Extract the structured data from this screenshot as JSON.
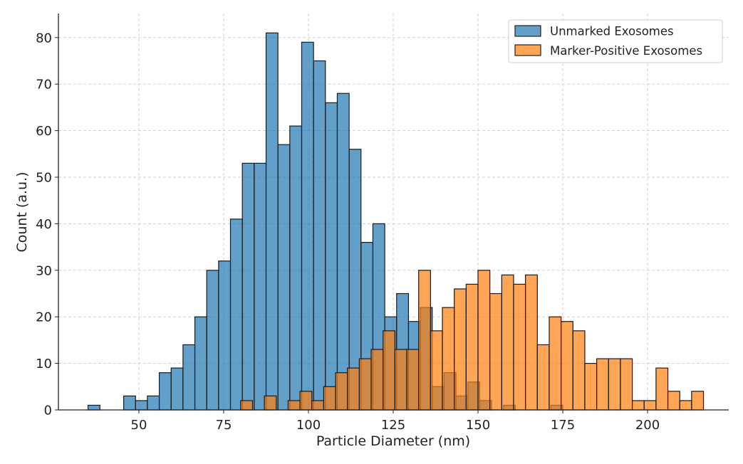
{
  "chart_data": {
    "type": "bar",
    "subtype": "histogram",
    "title": "",
    "xlabel": "Particle Diameter (nm)",
    "ylabel": "Count (a.u.)",
    "xlim": [
      30,
      222
    ],
    "ylim": [
      0,
      85
    ],
    "xticks": [
      50,
      75,
      100,
      125,
      150,
      175,
      200
    ],
    "yticks": [
      0,
      10,
      20,
      30,
      40,
      50,
      60,
      70,
      80
    ],
    "grid": true,
    "legend_position": "top-right",
    "bin_width": 3.5,
    "series": [
      {
        "name": "Unmarked Exosomes",
        "color": "#1f77b4",
        "bins": [
          {
            "x0": 35.0,
            "value": 1
          },
          {
            "x0": 45.5,
            "value": 3
          },
          {
            "x0": 49.0,
            "value": 2
          },
          {
            "x0": 52.5,
            "value": 3
          },
          {
            "x0": 56.0,
            "value": 8
          },
          {
            "x0": 59.5,
            "value": 9
          },
          {
            "x0": 63.0,
            "value": 14
          },
          {
            "x0": 66.5,
            "value": 20
          },
          {
            "x0": 70.0,
            "value": 30
          },
          {
            "x0": 73.5,
            "value": 32
          },
          {
            "x0": 77.0,
            "value": 41
          },
          {
            "x0": 80.5,
            "value": 53
          },
          {
            "x0": 84.0,
            "value": 53
          },
          {
            "x0": 87.5,
            "value": 81
          },
          {
            "x0": 91.0,
            "value": 57
          },
          {
            "x0": 94.5,
            "value": 61
          },
          {
            "x0": 98.0,
            "value": 79
          },
          {
            "x0": 101.5,
            "value": 75
          },
          {
            "x0": 105.0,
            "value": 66
          },
          {
            "x0": 108.5,
            "value": 68
          },
          {
            "x0": 112.0,
            "value": 56
          },
          {
            "x0": 115.5,
            "value": 36
          },
          {
            "x0": 119.0,
            "value": 40
          },
          {
            "x0": 122.5,
            "value": 20
          },
          {
            "x0": 126.0,
            "value": 25
          },
          {
            "x0": 129.5,
            "value": 19
          },
          {
            "x0": 133.0,
            "value": 22
          },
          {
            "x0": 136.5,
            "value": 5
          },
          {
            "x0": 140.0,
            "value": 8
          },
          {
            "x0": 143.5,
            "value": 3
          },
          {
            "x0": 147.0,
            "value": 6
          },
          {
            "x0": 150.5,
            "value": 2
          },
          {
            "x0": 157.5,
            "value": 1
          },
          {
            "x0": 171.5,
            "value": 1
          }
        ]
      },
      {
        "name": "Marker-Positive Exosomes",
        "color": "#ff7f0e",
        "bins": [
          {
            "x0": 80.0,
            "value": 2
          },
          {
            "x0": 87.0,
            "value": 3
          },
          {
            "x0": 94.0,
            "value": 2
          },
          {
            "x0": 97.5,
            "value": 4
          },
          {
            "x0": 101.0,
            "value": 2
          },
          {
            "x0": 104.5,
            "value": 5
          },
          {
            "x0": 108.0,
            "value": 8
          },
          {
            "x0": 111.5,
            "value": 9
          },
          {
            "x0": 115.0,
            "value": 11
          },
          {
            "x0": 118.5,
            "value": 13
          },
          {
            "x0": 122.0,
            "value": 17
          },
          {
            "x0": 125.5,
            "value": 13
          },
          {
            "x0": 129.0,
            "value": 13
          },
          {
            "x0": 132.5,
            "value": 30
          },
          {
            "x0": 136.0,
            "value": 17
          },
          {
            "x0": 139.5,
            "value": 22
          },
          {
            "x0": 143.0,
            "value": 26
          },
          {
            "x0": 146.5,
            "value": 27
          },
          {
            "x0": 150.0,
            "value": 30
          },
          {
            "x0": 153.5,
            "value": 25
          },
          {
            "x0": 157.0,
            "value": 29
          },
          {
            "x0": 160.5,
            "value": 27
          },
          {
            "x0": 164.0,
            "value": 29
          },
          {
            "x0": 167.5,
            "value": 14
          },
          {
            "x0": 171.0,
            "value": 20
          },
          {
            "x0": 174.5,
            "value": 19
          },
          {
            "x0": 178.0,
            "value": 17
          },
          {
            "x0": 181.5,
            "value": 10
          },
          {
            "x0": 185.0,
            "value": 11
          },
          {
            "x0": 188.5,
            "value": 11
          },
          {
            "x0": 192.0,
            "value": 11
          },
          {
            "x0": 195.5,
            "value": 2
          },
          {
            "x0": 199.0,
            "value": 2
          },
          {
            "x0": 202.5,
            "value": 9
          },
          {
            "x0": 206.0,
            "value": 4
          },
          {
            "x0": 209.5,
            "value": 2
          },
          {
            "x0": 213.0,
            "value": 4
          }
        ]
      }
    ]
  }
}
